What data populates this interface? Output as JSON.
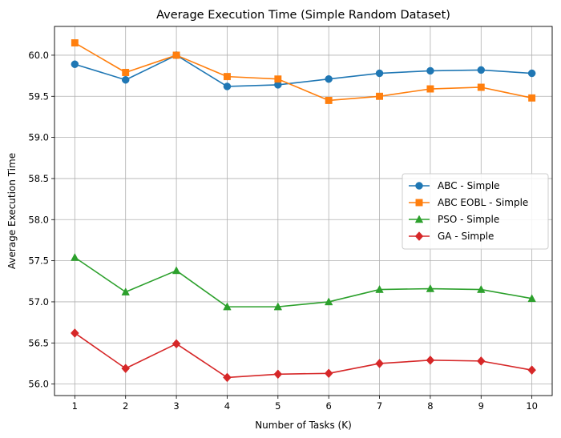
{
  "chart_data": {
    "type": "line",
    "title": "Average Execution Time (Simple Random Dataset)",
    "xlabel": "Number of Tasks (K)",
    "ylabel": "Average Execution Time",
    "x": [
      1,
      2,
      3,
      4,
      5,
      6,
      7,
      8,
      9,
      10
    ],
    "x_tick_labels": [
      "1",
      "2",
      "3",
      "4",
      "5",
      "6",
      "7",
      "8",
      "9",
      "10"
    ],
    "xlim": [
      0.6,
      10.4
    ],
    "ylim": [
      55.86,
      60.35
    ],
    "y_ticks": [
      56.0,
      56.5,
      57.0,
      57.5,
      58.0,
      58.5,
      59.0,
      59.5,
      60.0
    ],
    "y_tick_labels": [
      "56.0",
      "56.5",
      "57.0",
      "57.5",
      "58.0",
      "58.5",
      "59.0",
      "59.5",
      "60.0"
    ],
    "grid": true,
    "legend_position": "center-right",
    "series": [
      {
        "name": "ABC - Simple",
        "color": "#1f77b4",
        "marker": "circle",
        "values": [
          59.89,
          59.7,
          60.0,
          59.62,
          59.64,
          59.71,
          59.78,
          59.81,
          59.82,
          59.78
        ]
      },
      {
        "name": "ABC EOBL - Simple",
        "color": "#ff7f0e",
        "marker": "square",
        "values": [
          60.15,
          59.79,
          60.0,
          59.74,
          59.71,
          59.45,
          59.5,
          59.59,
          59.61,
          59.48
        ]
      },
      {
        "name": "PSO - Simple",
        "color": "#2ca02c",
        "marker": "triangle",
        "values": [
          57.54,
          57.12,
          57.38,
          56.94,
          56.94,
          57.0,
          57.15,
          57.16,
          57.15,
          57.04
        ]
      },
      {
        "name": "GA - Simple",
        "color": "#d62728",
        "marker": "diamond",
        "values": [
          56.62,
          56.19,
          56.49,
          56.08,
          56.12,
          56.13,
          56.25,
          56.29,
          56.28,
          56.17
        ]
      }
    ]
  }
}
